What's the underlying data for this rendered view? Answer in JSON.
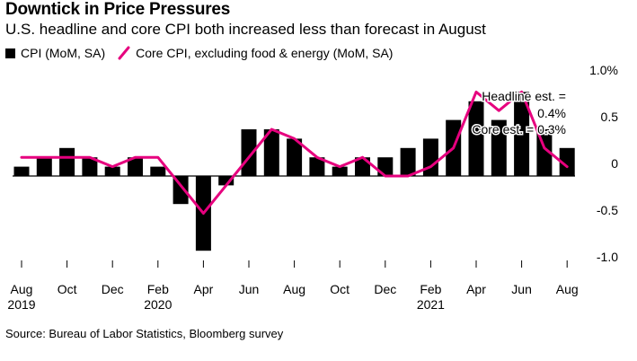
{
  "title": "Downtick in Price Pressures",
  "subtitle": "U.S. headline and core CPI both increased less than forecast in August",
  "source": "Source: Bureau of Labor Statistics, Bloomberg survey",
  "colors": {
    "bar": "#000000",
    "line": "#e6007e",
    "text": "#000000"
  },
  "chart_data": {
    "type": "bar",
    "legend": {
      "position": "top-left",
      "entries": [
        "CPI (MoM, SA)",
        "Core CPI, excluding food & energy (MoM, SA)"
      ]
    },
    "x": [
      "2019-08",
      "2019-09",
      "2019-10",
      "2019-11",
      "2019-12",
      "2020-01",
      "2020-02",
      "2020-03",
      "2020-04",
      "2020-05",
      "2020-06",
      "2020-07",
      "2020-08",
      "2020-09",
      "2020-10",
      "2020-11",
      "2020-12",
      "2021-01",
      "2021-02",
      "2021-03",
      "2021-04",
      "2021-05",
      "2021-06",
      "2021-07",
      "2021-08"
    ],
    "x_tick_labels": [
      {
        "x": "2019-08",
        "label": "Aug",
        "year": "2019"
      },
      {
        "x": "2019-10",
        "label": "Oct",
        "year": ""
      },
      {
        "x": "2019-12",
        "label": "Dec",
        "year": ""
      },
      {
        "x": "2020-02",
        "label": "Feb",
        "year": "2020"
      },
      {
        "x": "2020-04",
        "label": "Apr",
        "year": ""
      },
      {
        "x": "2020-06",
        "label": "Jun",
        "year": ""
      },
      {
        "x": "2020-08",
        "label": "Aug",
        "year": ""
      },
      {
        "x": "2020-10",
        "label": "Oct",
        "year": ""
      },
      {
        "x": "2020-12",
        "label": "Dec",
        "year": ""
      },
      {
        "x": "2021-02",
        "label": "Feb",
        "year": "2021"
      },
      {
        "x": "2021-04",
        "label": "Apr",
        "year": ""
      },
      {
        "x": "2021-06",
        "label": "Jun",
        "year": ""
      },
      {
        "x": "2021-08",
        "label": "Aug",
        "year": ""
      }
    ],
    "y_ticks": [
      {
        "value": 1.0,
        "label": "1.0%"
      },
      {
        "value": 0.5,
        "label": "0.5"
      },
      {
        "value": 0.0,
        "label": "0"
      },
      {
        "value": -0.5,
        "label": "-0.5"
      },
      {
        "value": -1.0,
        "label": "-1.0"
      }
    ],
    "ylim": [
      -1.05,
      1.05
    ],
    "grid": false,
    "series": [
      {
        "name": "CPI (MoM, SA)",
        "type": "bar",
        "values": [
          0.1,
          0.2,
          0.3,
          0.2,
          0.1,
          0.2,
          0.1,
          -0.3,
          -0.8,
          -0.1,
          0.5,
          0.5,
          0.4,
          0.2,
          0.1,
          0.2,
          0.2,
          0.3,
          0.4,
          0.6,
          0.8,
          0.6,
          0.9,
          0.5,
          0.3
        ]
      },
      {
        "name": "Core CPI, excluding food & energy (MoM, SA)",
        "type": "line",
        "values": [
          0.2,
          0.2,
          0.2,
          0.2,
          0.1,
          0.2,
          0.2,
          -0.1,
          -0.4,
          -0.1,
          0.2,
          0.5,
          0.4,
          0.2,
          0.1,
          0.2,
          0.0,
          0.0,
          0.1,
          0.3,
          0.9,
          0.7,
          0.9,
          0.3,
          0.1
        ]
      }
    ],
    "annotations": [
      {
        "text_lines": [
          "Headline est. =",
          "0.4%"
        ]
      },
      {
        "text_lines": [
          "Core est. = 0.3%"
        ]
      }
    ]
  }
}
